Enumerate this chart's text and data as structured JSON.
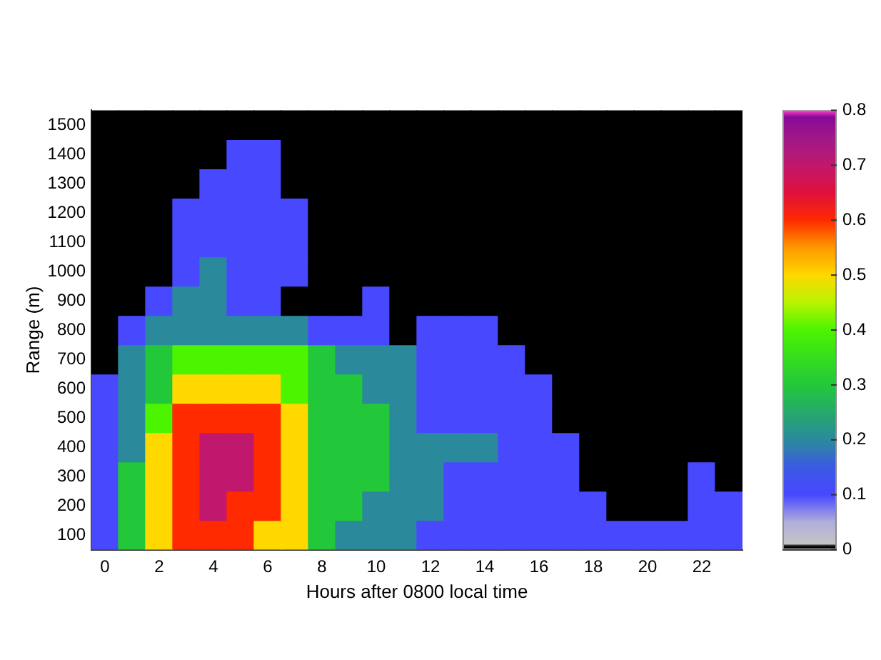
{
  "chart_data": {
    "type": "heatmap",
    "xlabel": "Hours after 0800 local time",
    "ylabel": "Range (m)",
    "categories": [
      "0",
      null,
      "2",
      null,
      "4",
      null,
      "6",
      null,
      "8",
      null,
      "10",
      null,
      "12",
      null,
      "14",
      null,
      "16",
      null,
      "18",
      null,
      "20",
      null,
      "22",
      null
    ],
    "y_categories": [
      "1500",
      "1400",
      "1300",
      "1200",
      "1100",
      "1000",
      "900",
      "800",
      "700",
      "600",
      "500",
      "400",
      "300",
      "200",
      "100"
    ],
    "cells": [
      [
        0,
        0,
        0,
        0,
        0,
        0,
        0,
        0,
        0,
        0,
        0,
        0,
        0,
        0,
        0,
        0,
        0,
        0,
        0,
        0,
        0,
        0,
        0,
        0
      ],
      [
        0,
        0,
        0,
        0,
        0,
        0.1,
        0.1,
        0,
        0,
        0,
        0,
        0,
        0,
        0,
        0,
        0,
        0,
        0,
        0,
        0,
        0,
        0,
        0,
        0
      ],
      [
        0,
        0,
        0,
        0,
        0.1,
        0.1,
        0.1,
        0,
        0,
        0,
        0,
        0,
        0,
        0,
        0,
        0,
        0,
        0,
        0,
        0,
        0,
        0,
        0,
        0
      ],
      [
        0,
        0,
        0,
        0.1,
        0.1,
        0.1,
        0.1,
        0.1,
        0,
        0,
        0,
        0,
        0,
        0,
        0,
        0,
        0,
        0,
        0,
        0,
        0,
        0,
        0,
        0
      ],
      [
        0,
        0,
        0,
        0.1,
        0.1,
        0.1,
        0.1,
        0.1,
        0,
        0,
        0,
        0,
        0,
        0,
        0,
        0,
        0,
        0,
        0,
        0,
        0,
        0,
        0,
        0
      ],
      [
        0,
        0,
        0,
        0.1,
        0.2,
        0.1,
        0.1,
        0.1,
        0,
        0,
        0,
        0,
        0,
        0,
        0,
        0,
        0,
        0,
        0,
        0,
        0,
        0,
        0,
        0
      ],
      [
        0,
        0,
        0.1,
        0.2,
        0.2,
        0.1,
        0.1,
        0,
        0,
        0,
        0.1,
        0,
        0,
        0,
        0,
        0,
        0,
        0,
        0,
        0,
        0,
        0,
        0,
        0
      ],
      [
        0,
        0.1,
        0.2,
        0.2,
        0.2,
        0.2,
        0.2,
        0.2,
        0.1,
        0.1,
        0.1,
        0,
        0.1,
        0.1,
        0.1,
        0,
        0,
        0,
        0,
        0,
        0,
        0,
        0,
        0
      ],
      [
        0,
        0.2,
        0.3,
        0.4,
        0.4,
        0.4,
        0.4,
        0.4,
        0.3,
        0.2,
        0.2,
        0.2,
        0.1,
        0.1,
        0.1,
        0.1,
        0,
        0,
        0,
        0,
        0,
        0,
        0,
        0
      ],
      [
        0.1,
        0.2,
        0.3,
        0.5,
        0.5,
        0.5,
        0.5,
        0.4,
        0.3,
        0.3,
        0.2,
        0.2,
        0.1,
        0.1,
        0.1,
        0.1,
        0.1,
        0,
        0,
        0,
        0,
        0,
        0,
        0
      ],
      [
        0.1,
        0.2,
        0.4,
        0.6,
        0.6,
        0.6,
        0.6,
        0.5,
        0.3,
        0.3,
        0.3,
        0.2,
        0.1,
        0.1,
        0.1,
        0.1,
        0.1,
        0,
        0,
        0,
        0,
        0,
        0,
        0
      ],
      [
        0.1,
        0.2,
        0.5,
        0.6,
        0.7,
        0.7,
        0.6,
        0.5,
        0.3,
        0.3,
        0.3,
        0.2,
        0.2,
        0.2,
        0.2,
        0.1,
        0.1,
        0.1,
        0,
        0,
        0,
        0,
        0,
        0
      ],
      [
        0.1,
        0.3,
        0.5,
        0.6,
        0.7,
        0.7,
        0.6,
        0.5,
        0.3,
        0.3,
        0.3,
        0.2,
        0.2,
        0.1,
        0.1,
        0.1,
        0.1,
        0.1,
        0,
        0,
        0,
        0,
        0.1,
        0
      ],
      [
        0.1,
        0.3,
        0.5,
        0.6,
        0.7,
        0.6,
        0.6,
        0.5,
        0.3,
        0.3,
        0.2,
        0.2,
        0.2,
        0.1,
        0.1,
        0.1,
        0.1,
        0.1,
        0.1,
        0,
        0,
        0,
        0.1,
        0.1
      ],
      [
        0.1,
        0.3,
        0.5,
        0.6,
        0.6,
        0.6,
        0.5,
        0.5,
        0.3,
        0.2,
        0.2,
        0.2,
        0.1,
        0.1,
        0.1,
        0.1,
        0.1,
        0.1,
        0.1,
        0.1,
        0.1,
        0.1,
        0.1,
        0.1
      ]
    ],
    "clim": [
      0,
      0.8
    ],
    "cticks": [
      0,
      0.1,
      0.2,
      0.3,
      0.4,
      0.5,
      0.6,
      0.7,
      0.8
    ]
  }
}
